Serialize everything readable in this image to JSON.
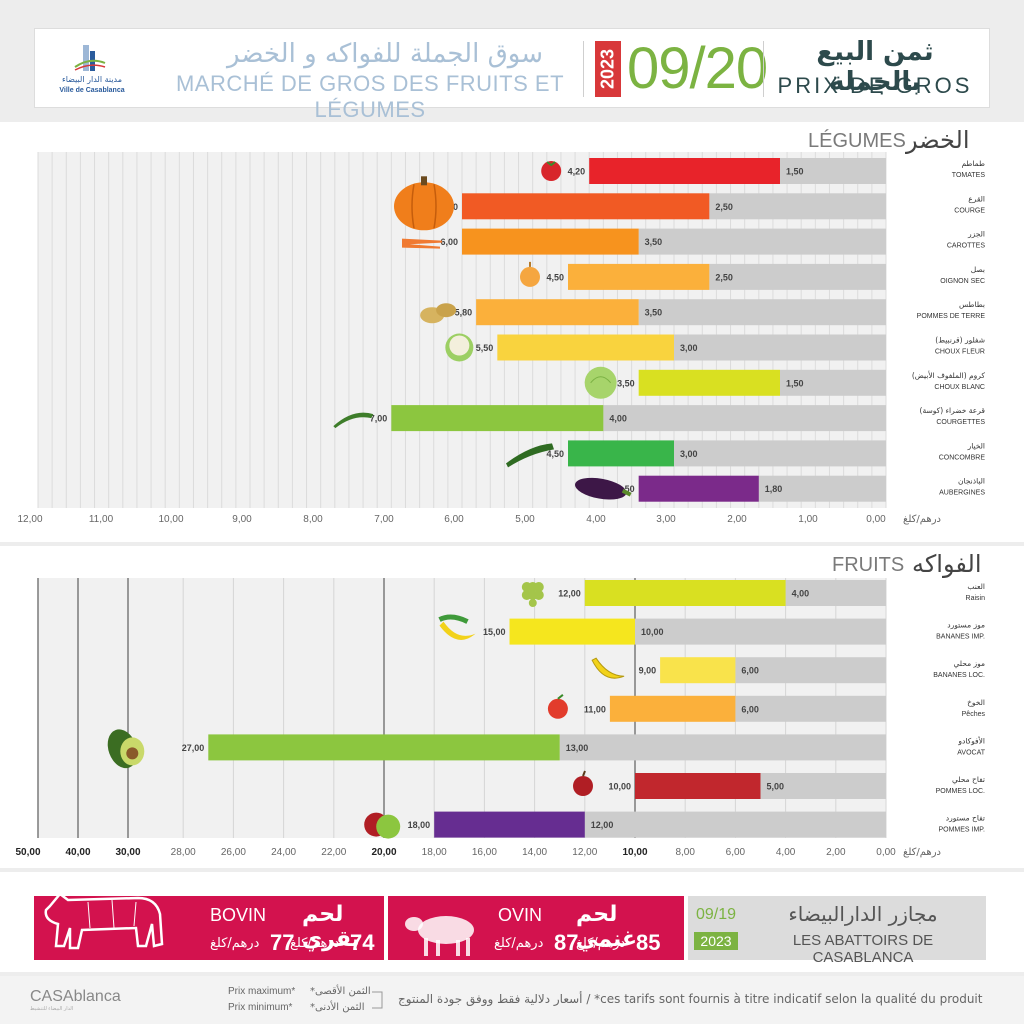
{
  "header": {
    "city_logo_ar": "مدينة الدار البيضاء",
    "city_logo_fr": "Ville de Casablanca",
    "market_ar": "سوق الجملة للفواكه و الخضر",
    "market_fr": "MARCHÉ DE GROS DES FRUITS ET LÉGUMES",
    "year": "2023",
    "date": "09/20",
    "prix_ar": "ثمن البيع بالجملة",
    "prix_fr": "PRIX DE GROS"
  },
  "colors": {
    "red": "#e8232a",
    "orange_dark": "#f15a24",
    "orange": "#f7931e",
    "orange_light": "#fbb03b",
    "yellow": "#f9d33e",
    "yellow_green": "#d9e021",
    "green": "#8cc63f",
    "green_dark": "#39b54a",
    "purple": "#7b2a8a",
    "grey_bar": "#cccccc",
    "meat": "#d3124e"
  },
  "chart_data": [
    {
      "type": "bar",
      "title": "LÉGUMES",
      "title_ar": "الخضر",
      "unit_label": "درهم/كلغ",
      "orientation": "horizontal-reversed",
      "xlim": [
        0,
        12
      ],
      "ticks": [
        "12,00",
        "11,00",
        "10,00",
        "9,00",
        "8,00",
        "7,00",
        "6,00",
        "5,00",
        "4,00",
        "3,00",
        "2,00",
        "1,00",
        "0,00"
      ],
      "series": [
        {
          "name": "Prix minimum"
        },
        {
          "name": "Prix maximum"
        }
      ],
      "categories": [
        {
          "ar": "طماطم",
          "fr": "TOMATES",
          "min": 1.5,
          "max": 4.2,
          "min_label": "1,50",
          "max_label": "4,20",
          "color": "#e8232a",
          "icon": "tomato-icon"
        },
        {
          "ar": "القرع",
          "fr": "COURGE",
          "min": 2.5,
          "max": 6.0,
          "min_label": "2,50",
          "max_label": "6,00",
          "color": "#f15a24",
          "icon": "pumpkin-icon"
        },
        {
          "ar": "الجزر",
          "fr": "CAROTTES",
          "min": 3.5,
          "max": 6.0,
          "min_label": "3,50",
          "max_label": "6,00",
          "color": "#f7931e",
          "icon": "carrot-icon"
        },
        {
          "ar": "بصل",
          "fr": "OIGNON SEC",
          "min": 2.5,
          "max": 4.5,
          "min_label": "2,50",
          "max_label": "4,50",
          "color": "#fbb03b",
          "icon": "onion-icon"
        },
        {
          "ar": "بطاطس",
          "fr": "POMMES DE TERRE",
          "min": 3.5,
          "max": 5.8,
          "min_label": "3,50",
          "max_label": "5,80",
          "color": "#fbb03b",
          "icon": "potato-icon"
        },
        {
          "ar": "شفلور (قرنبيط)",
          "fr": "CHOUX FLEUR",
          "min": 3.0,
          "max": 5.5,
          "min_label": "3,00",
          "max_label": "5,50",
          "color": "#f9d33e",
          "icon": "cauliflower-icon"
        },
        {
          "ar": "كروم (الملفوف الأبيض)",
          "fr": "CHOUX BLANC",
          "min": 1.5,
          "max": 3.5,
          "min_label": "1,50",
          "max_label": "3,50",
          "color": "#d9e021",
          "icon": "cabbage-icon"
        },
        {
          "ar": "قرعة خضراء (كوسة)",
          "fr": "COURGETTES",
          "min": 4.0,
          "max": 7.0,
          "min_label": "4,00",
          "max_label": "7,00",
          "color": "#8cc63f",
          "icon": "zucchini-icon"
        },
        {
          "ar": "الخيار",
          "fr": "CONCOMBRE",
          "min": 3.0,
          "max": 4.5,
          "min_label": "3,00",
          "max_label": "4,50",
          "color": "#39b54a",
          "icon": "cucumber-icon"
        },
        {
          "ar": "الباذنجان",
          "fr": "AUBERGINES",
          "min": 1.8,
          "max": 3.5,
          "min_label": "1,80",
          "max_label": "3,50",
          "color": "#7b2a8a",
          "icon": "eggplant-icon"
        }
      ]
    },
    {
      "type": "bar",
      "title": "FRUITS",
      "title_ar": "الفواكه",
      "unit_label": "درهم/كلغ",
      "orientation": "horizontal-reversed",
      "xlim": [
        0,
        50
      ],
      "ticks": [
        "50,00",
        "40,00",
        "30,00",
        "28,00",
        "26,00",
        "24,00",
        "22,00",
        "20,00",
        "18,00",
        "16,00",
        "14,00",
        "12,00",
        "10,00",
        "8,00",
        "6,00",
        "4,00",
        "2,00",
        "0,00"
      ],
      "series": [
        {
          "name": "Prix minimum"
        },
        {
          "name": "Prix maximum"
        }
      ],
      "categories": [
        {
          "ar": "العنب",
          "fr": "Raisin",
          "min": 4.0,
          "max": 12.0,
          "min_label": "4,00",
          "max_label": "12,00",
          "color": "#d9e021",
          "icon": "grapes-icon"
        },
        {
          "ar": "موز مستورد",
          "fr": "BANANES IMP.",
          "min": 10.0,
          "max": 15.0,
          "min_label": "10,00",
          "max_label": "15,00",
          "color": "#f5e61e",
          "icon": "bananas-icon"
        },
        {
          "ar": "موز محلي",
          "fr": "BANANES LOC.",
          "min": 6.0,
          "max": 9.0,
          "min_label": "6,00",
          "max_label": "9,00",
          "color": "#f9e34b",
          "icon": "banana-icon"
        },
        {
          "ar": "الخوخ",
          "fr": "Pêches",
          "min": 6.0,
          "max": 11.0,
          "min_label": "6,00",
          "max_label": "11,00",
          "color": "#fbb03b",
          "icon": "peach-icon"
        },
        {
          "ar": "الأفوكادو",
          "fr": "AVOCAT",
          "min": 13.0,
          "max": 27.0,
          "min_label": "13,00",
          "max_label": "27,00",
          "color": "#8cc63f",
          "icon": "avocado-icon"
        },
        {
          "ar": "تفاح محلي",
          "fr": "POMMES LOC.",
          "min": 5.0,
          "max": 10.0,
          "min_label": "5,00",
          "max_label": "10,00",
          "color": "#c1272d",
          "icon": "apple-red-icon"
        },
        {
          "ar": "تفاح مستورد",
          "fr": "POMMES IMP.",
          "min": 12.0,
          "max": 18.0,
          "min_label": "12,00",
          "max_label": "18,00",
          "color": "#662d91",
          "icon": "apples-icon"
        }
      ]
    }
  ],
  "meat": {
    "bovin": {
      "ar": "لحم بقري",
      "fr": "BOVIN",
      "min": "74",
      "max": "77",
      "unit": "درهم/كلغ"
    },
    "ovin": {
      "ar": "لحم غنمي",
      "fr": "OVIN",
      "min": "85",
      "max": "87",
      "unit": "درهم/كلغ"
    }
  },
  "abattoir": {
    "date": "09/19",
    "year": "2023",
    "ar": "مجازر الدارالبيضاء",
    "fr": "LES ABATTOIRS DE CASABLANCA"
  },
  "footer": {
    "casa_logo": "CASAblanca",
    "casa_sub": "الدار البيضاء للتنشيط",
    "legend_max_fr": "Prix maximum*",
    "legend_min_fr": "Prix minimum*",
    "legend_max_ar": "*الثمن الأقصى",
    "legend_min_ar": "*الثمن الأدنى",
    "disclaimer": "أسعار دلالية فقط ووفق جودة المنتوج / *ces tarifs sont fournis à titre indicatif selon la qualité du produit"
  }
}
